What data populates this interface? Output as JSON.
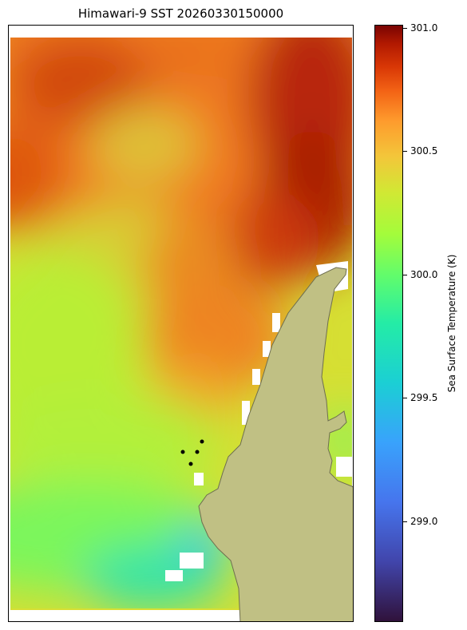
{
  "title": "Himawari-9 SST 20260330150000",
  "colorbar": {
    "label": "Sea Surface Temperature (K)",
    "colormap": "turbo",
    "range": [
      298.6,
      301.03
    ],
    "ticks": [
      "301.0",
      "300.5",
      "300.0",
      "299.5",
      "299.0"
    ]
  },
  "map": {
    "land_color": "#c0c084",
    "coastline_color": "#6e6e50",
    "missing_color": "#ffffff",
    "marker_color": "#000000",
    "marker_count": 4
  }
}
